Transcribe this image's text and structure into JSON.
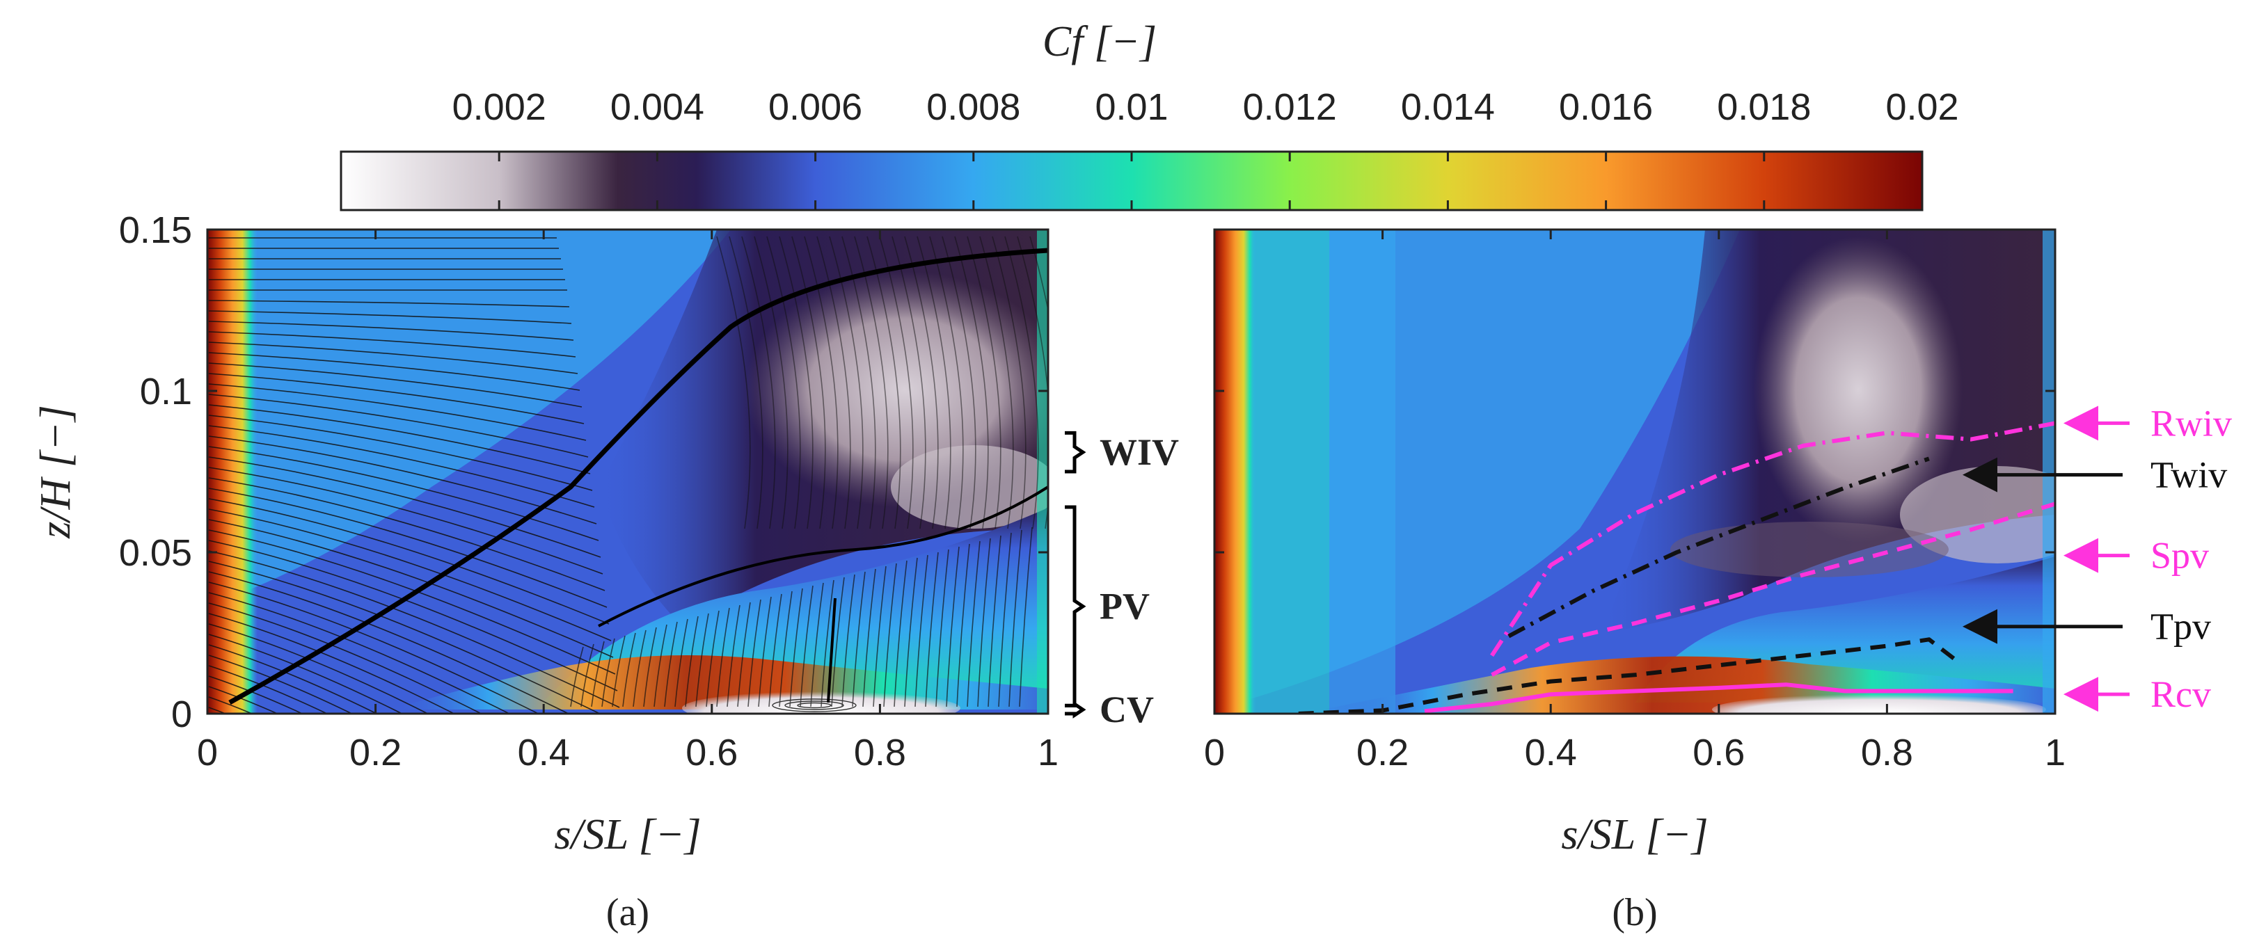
{
  "colorbar": {
    "label": "C_f [−]",
    "label_text": "Cf [−]",
    "range": [
      0,
      0.02
    ],
    "ticks": [
      0.002,
      0.004,
      0.006,
      0.008,
      0.01,
      0.012,
      0.014,
      0.016,
      0.018,
      0.02
    ],
    "tick_labels": [
      "0.002",
      "0.004",
      "0.006",
      "0.008",
      "0.01",
      "0.012",
      "0.014",
      "0.016",
      "0.018",
      "0.02"
    ],
    "colormap": [
      {
        "v": 0.0,
        "c": "#ffffff"
      },
      {
        "v": 0.002,
        "c": "#c9bfc8"
      },
      {
        "v": 0.0035,
        "c": "#3a2440"
      },
      {
        "v": 0.0045,
        "c": "#2b1d55"
      },
      {
        "v": 0.006,
        "c": "#3d5fd8"
      },
      {
        "v": 0.008,
        "c": "#35a8f0"
      },
      {
        "v": 0.01,
        "c": "#1de0b0"
      },
      {
        "v": 0.012,
        "c": "#8af04a"
      },
      {
        "v": 0.014,
        "c": "#e0d432"
      },
      {
        "v": 0.016,
        "c": "#f99a2c"
      },
      {
        "v": 0.018,
        "c": "#d2420c"
      },
      {
        "v": 0.02,
        "c": "#7a0404"
      }
    ]
  },
  "chart_data": [
    {
      "type": "heatmap",
      "caption": "(a)",
      "xlabel": "s/S_L [−]",
      "xlabel_text": "s/SL [−]",
      "ylabel": "z/H [−]",
      "ylabel_text": "z/H [−]",
      "xlim": [
        0,
        1
      ],
      "ylim": [
        0,
        0.15
      ],
      "xticks": [
        0,
        0.2,
        0.4,
        0.6,
        0.8,
        1
      ],
      "xtick_labels": [
        "0",
        "0.2",
        "0.4",
        "0.6",
        "0.8",
        "1"
      ],
      "yticks": [
        0,
        0.05,
        0.1,
        0.15
      ],
      "ytick_labels": [
        "0",
        "0.05",
        "0.1",
        "0.15"
      ],
      "overlay": "skin-friction streamlines",
      "annotations": [
        {
          "text": "WIV",
          "z_range": [
            0.075,
            0.087
          ]
        },
        {
          "text": "PV",
          "z_range": [
            0.0025,
            0.064
          ]
        },
        {
          "text": "CV",
          "z_range": [
            0.0,
            0.0025
          ]
        }
      ]
    },
    {
      "type": "heatmap",
      "caption": "(b)",
      "xlabel": "s/S_L [−]",
      "xlabel_text": "s/SL [−]",
      "xlim": [
        0,
        1
      ],
      "ylim": [
        0,
        0.15
      ],
      "xticks": [
        0,
        0.2,
        0.4,
        0.6,
        0.8,
        1
      ],
      "xtick_labels": [
        "0",
        "0.2",
        "0.4",
        "0.6",
        "0.8",
        "1"
      ],
      "series": [
        {
          "name": "Rwiv",
          "color": "#ff33dd",
          "style": "dash-dot",
          "x": [
            0.33,
            0.4,
            0.5,
            0.6,
            0.7,
            0.8,
            0.9,
            1.0
          ],
          "y": [
            0.018,
            0.046,
            0.062,
            0.074,
            0.083,
            0.087,
            0.085,
            0.09
          ]
        },
        {
          "name": "Twiv",
          "color": "#111111",
          "style": "dash-dot",
          "x": [
            0.35,
            0.45,
            0.55,
            0.65,
            0.75,
            0.85
          ],
          "y": [
            0.024,
            0.038,
            0.05,
            0.06,
            0.07,
            0.079
          ]
        },
        {
          "name": "Spv",
          "color": "#ff33dd",
          "style": "dash",
          "x": [
            0.33,
            0.4,
            0.5,
            0.6,
            0.7,
            0.8,
            0.9,
            1.0
          ],
          "y": [
            0.012,
            0.022,
            0.028,
            0.035,
            0.043,
            0.05,
            0.057,
            0.065
          ]
        },
        {
          "name": "Tpv",
          "color": "#111111",
          "style": "dash",
          "x": [
            0.1,
            0.2,
            0.3,
            0.4,
            0.5,
            0.6,
            0.7,
            0.8,
            0.85,
            0.88
          ],
          "y": [
            0.0,
            0.001,
            0.006,
            0.01,
            0.012,
            0.015,
            0.018,
            0.021,
            0.023,
            0.017
          ]
        },
        {
          "name": "Rcv",
          "color": "#ff33dd",
          "style": "solid",
          "x": [
            0.25,
            0.33,
            0.4,
            0.5,
            0.6,
            0.68,
            0.75,
            0.85,
            0.95
          ],
          "y": [
            0.0008,
            0.003,
            0.006,
            0.007,
            0.008,
            0.009,
            0.007,
            0.007,
            0.007
          ]
        }
      ],
      "annotations": [
        {
          "text": "Rwiv",
          "color": "#ff33dd",
          "arrow_z": 0.09
        },
        {
          "text": "Twiv",
          "color": "#111111",
          "arrow_z": 0.074
        },
        {
          "text": "Spv",
          "color": "#ff33dd",
          "arrow_z": 0.049
        },
        {
          "text": "Tpv",
          "color": "#111111",
          "arrow_z": 0.027
        },
        {
          "text": "Rcv",
          "color": "#ff33dd",
          "arrow_z": 0.006
        }
      ]
    }
  ]
}
